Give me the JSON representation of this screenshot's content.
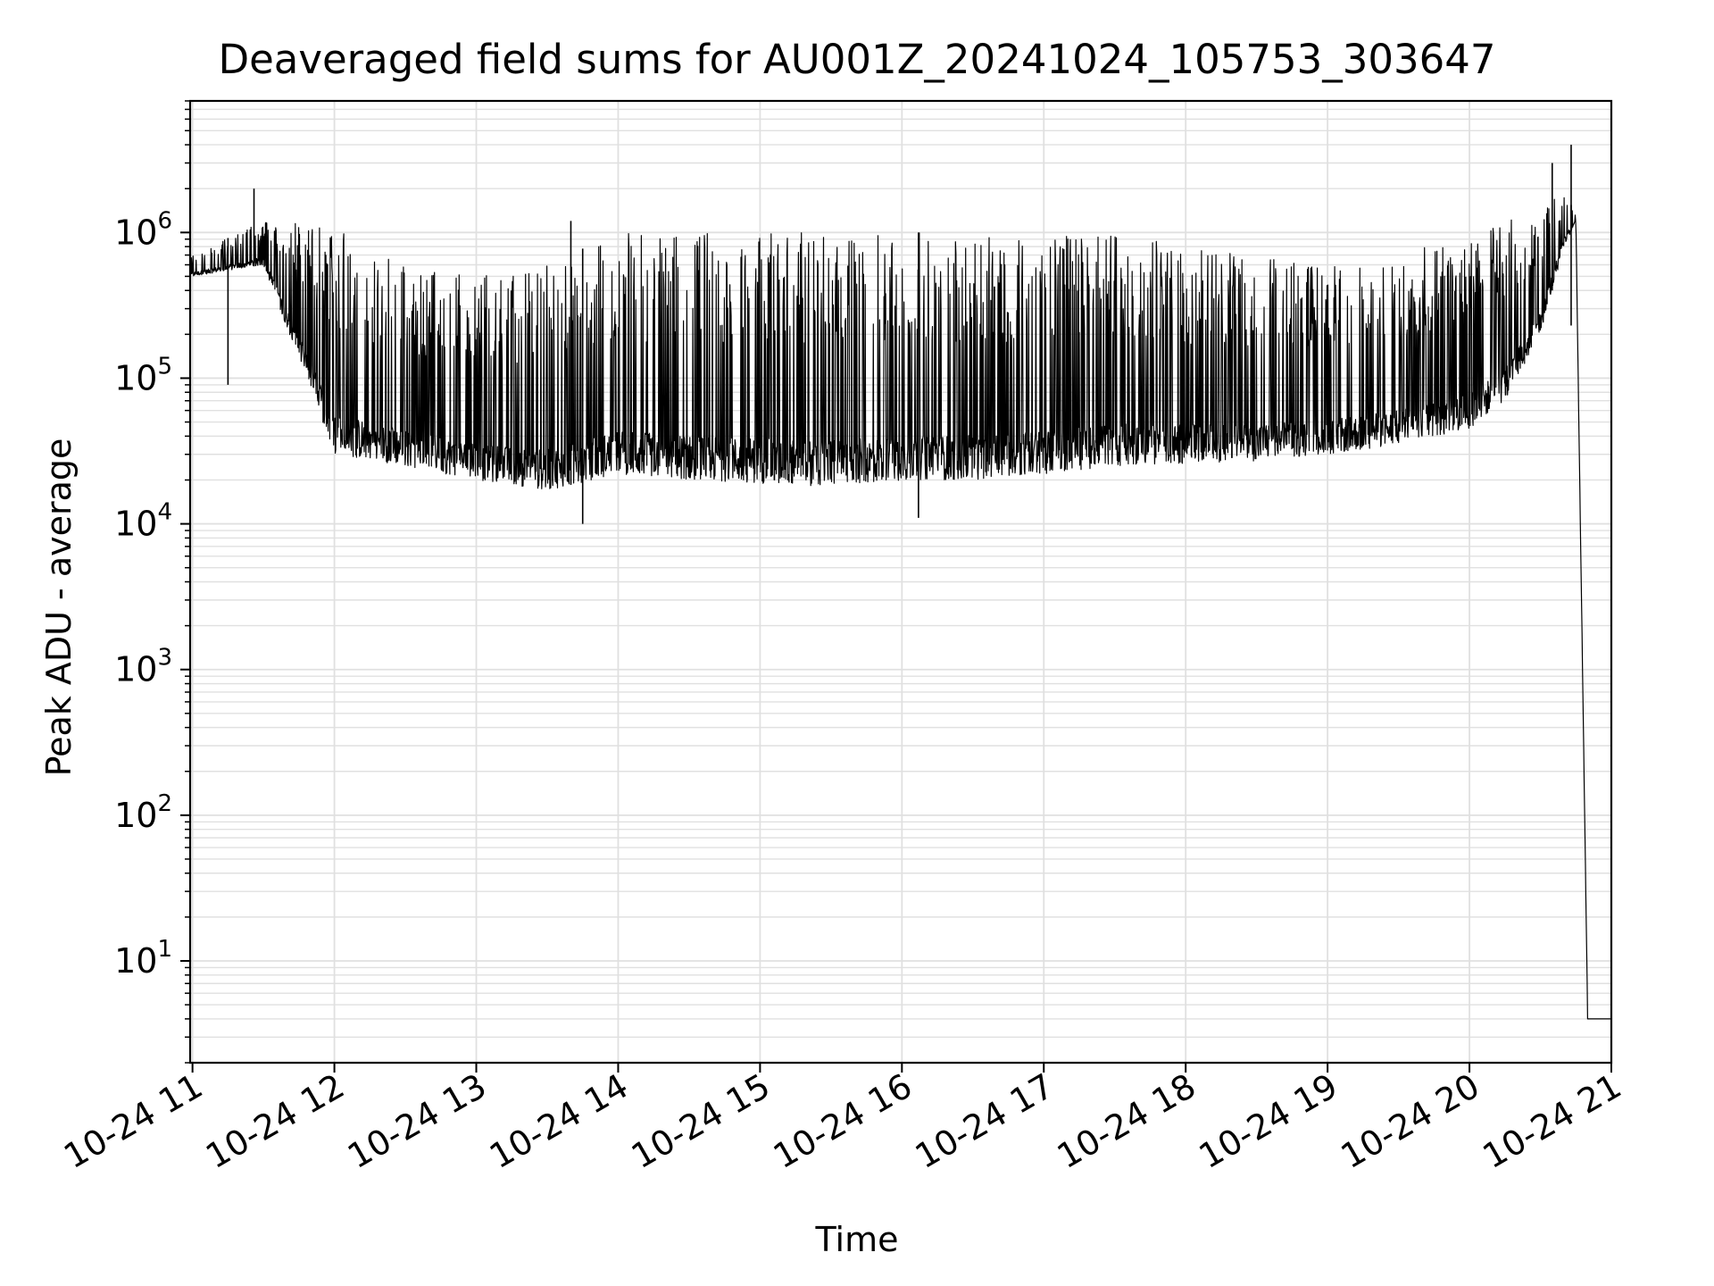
{
  "chart_data": {
    "type": "line",
    "title": "Deaveraged field sums for AU001Z_20241024_105753_303647",
    "xlabel": "Time",
    "ylabel": "Peak ADU - average",
    "x_range": [
      "2024-10-24 10:59",
      "2024-10-24 21:00"
    ],
    "y_range": [
      2,
      8000000
    ],
    "y_scale": "log",
    "grid": true,
    "x_ticks": [
      "10-24 11",
      "10-24 12",
      "10-24 13",
      "10-24 14",
      "10-24 15",
      "10-24 16",
      "10-24 17",
      "10-24 18",
      "10-24 19",
      "10-24 20",
      "10-24 21"
    ],
    "y_ticks": [
      {
        "value": 10,
        "base": "10",
        "exp": "1"
      },
      {
        "value": 100,
        "base": "10",
        "exp": "2"
      },
      {
        "value": 1000,
        "base": "10",
        "exp": "3"
      },
      {
        "value": 10000,
        "base": "10",
        "exp": "4"
      },
      {
        "value": 100000,
        "base": "10",
        "exp": "5"
      },
      {
        "value": 1000000,
        "base": "10",
        "exp": "6"
      }
    ],
    "line_color": "#000000",
    "envelope": {
      "times": [
        "11:00",
        "11:30",
        "12:00",
        "12:30",
        "13:00",
        "13:30",
        "14:00",
        "14:30",
        "15:00",
        "15:30",
        "16:00",
        "16:30",
        "17:00",
        "17:30",
        "18:00",
        "18:30",
        "19:00",
        "19:30",
        "20:00",
        "20:15",
        "20:30",
        "20:40",
        "20:45",
        "20:50",
        "21:00"
      ],
      "lower": [
        500000,
        600000,
        30000,
        25000,
        20000,
        17000,
        22000,
        20000,
        19000,
        18000,
        20000,
        20000,
        22000,
        25000,
        26000,
        27000,
        30000,
        35000,
        45000,
        70000,
        200000,
        800000,
        1200000,
        4,
        4
      ],
      "upper": [
        700000,
        1200000,
        1100000,
        600000,
        500000,
        600000,
        1000000,
        1000000,
        1000000,
        1000000,
        1000000,
        1000000,
        1000000,
        1000000,
        800000,
        700000,
        600000,
        700000,
        1000000,
        1200000,
        1500000,
        2000000,
        1300000,
        4,
        4
      ]
    },
    "spikes": [
      {
        "time": "11:15",
        "value": 90000
      },
      {
        "time": "11:26",
        "value": 2000000
      },
      {
        "time": "13:40",
        "value": 1200000
      },
      {
        "time": "13:45",
        "value": 10000
      },
      {
        "time": "16:07",
        "value": 11000
      },
      {
        "time": "20:35",
        "value": 3000000
      },
      {
        "time": "20:43",
        "value": 4000000
      },
      {
        "time": "20:43",
        "value": 230000
      }
    ]
  }
}
